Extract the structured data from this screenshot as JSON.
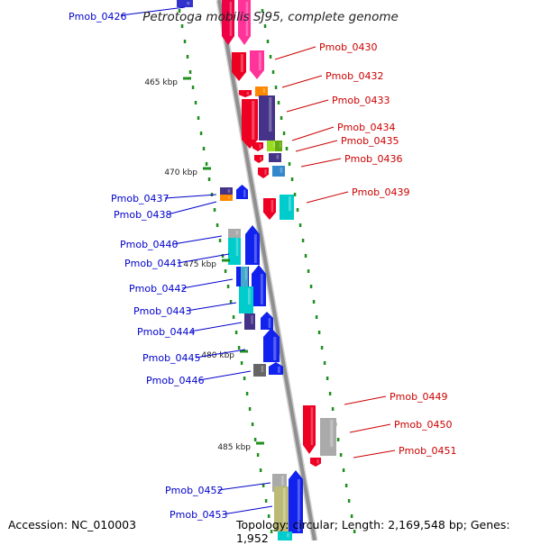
{
  "title": "Petrotoga mobilis SJ95, complete genome",
  "accession": "Accession: NC_010003",
  "topology": "Topology: circular; Length: 2,169,548 bp; Genes: 1,952",
  "colors": {
    "backbone": "#8f8f8f",
    "tick": "#1f8f1f",
    "label_forward": "#0000cc",
    "label_reverse": "#cc0000"
  },
  "ticks": [
    "465 kbp",
    "470 kbp",
    "475 kbp",
    "480 kbp",
    "485 kbp"
  ],
  "left_labels": [
    "Pmob_0426",
    "Pmob_0437",
    "Pmob_0438",
    "Pmob_0440",
    "Pmob_0441",
    "Pmob_0442",
    "Pmob_0443",
    "Pmob_0444",
    "Pmob_0445",
    "Pmob_0446",
    "Pmob_0452",
    "Pmob_0453"
  ],
  "right_labels": [
    "Pmob_0430",
    "Pmob_0432",
    "Pmob_0433",
    "Pmob_0434",
    "Pmob_0435",
    "Pmob_0436",
    "Pmob_0439",
    "Pmob_0449",
    "Pmob_0450",
    "Pmob_0451"
  ]
}
